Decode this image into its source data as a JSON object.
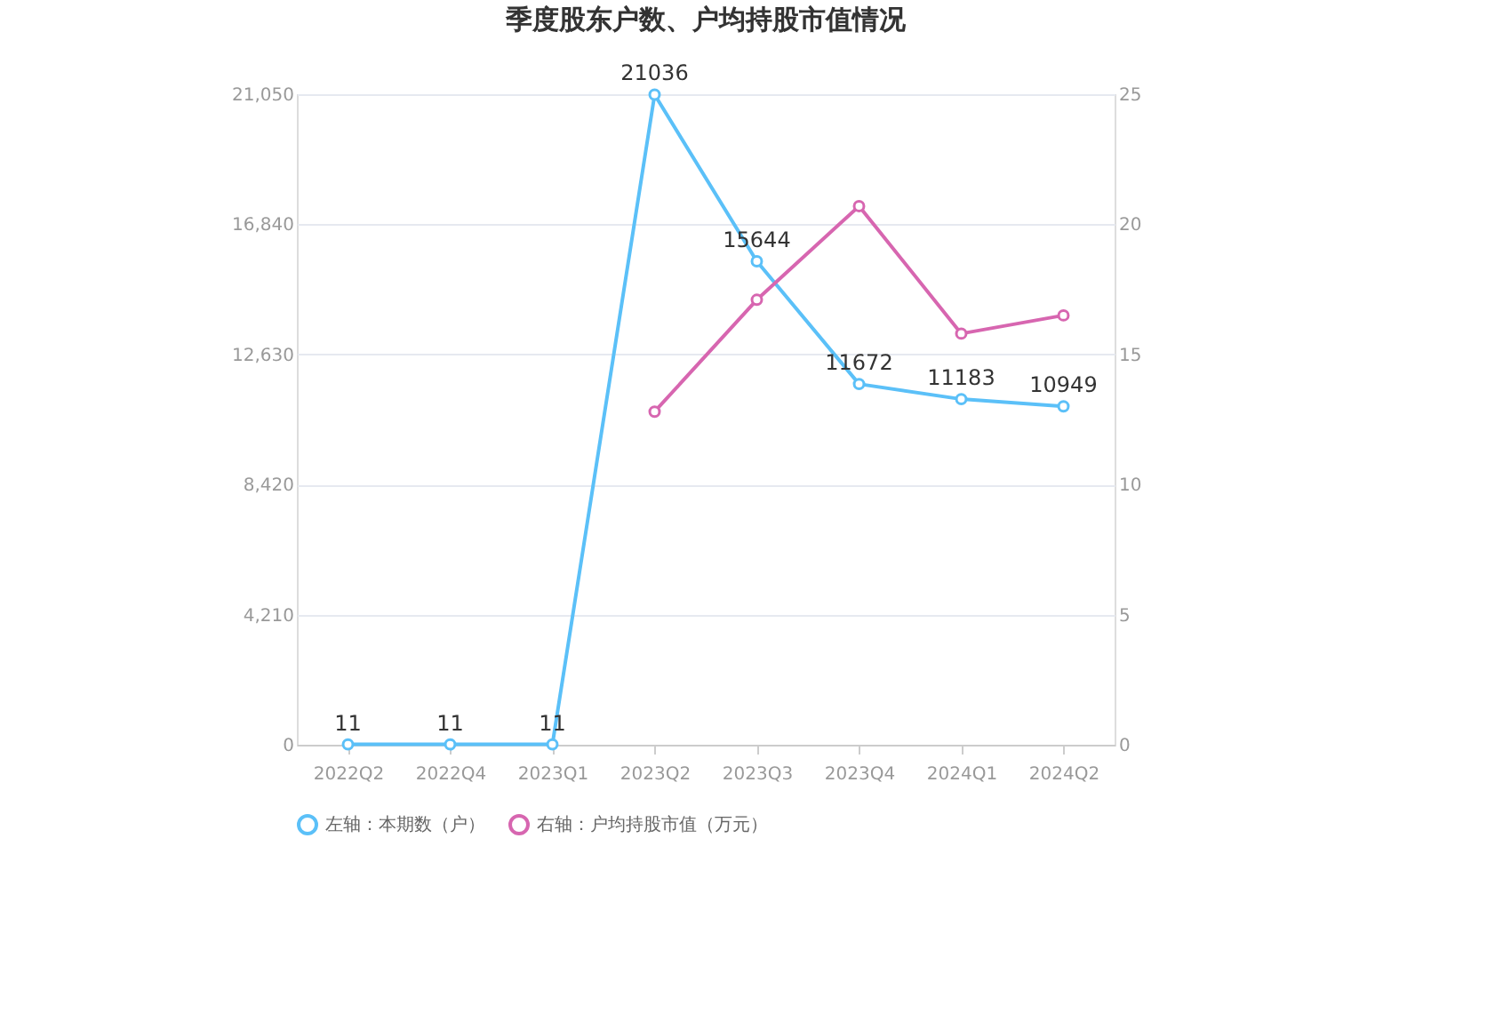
{
  "chart_data": {
    "type": "line",
    "title": "季度股东户数、户均持股市值情况",
    "categories": [
      "2022Q2",
      "2022Q4",
      "2023Q1",
      "2023Q2",
      "2023Q3",
      "2023Q4",
      "2024Q1",
      "2024Q2"
    ],
    "series": [
      {
        "name": "左轴：本期数（户）",
        "color": "#5bc0f8",
        "values": [
          11,
          11,
          11,
          21036,
          15644,
          11672,
          11183,
          10949
        ],
        "value_labels": [
          "11",
          "11",
          "11",
          "21036",
          "15644",
          "11672",
          "11183",
          "10949"
        ]
      },
      {
        "name": "右轴：户均持股市值（万元）",
        "color": "#d766b0",
        "axis": "y2",
        "values": [
          null,
          null,
          null,
          12.8,
          17.1,
          20.7,
          15.8,
          16.5
        ]
      }
    ],
    "ylim": [
      0,
      21050
    ],
    "yticks": [
      0,
      {
        "value": 4210,
        "label": "4,210"
      },
      {
        "value": 8420,
        "label": "8,420"
      },
      {
        "value": 12630,
        "label": "12,630"
      },
      {
        "value": 16840,
        "label": "16,840"
      },
      {
        "value": 21050,
        "label": "21,050"
      }
    ],
    "y2lim": [
      0,
      25
    ],
    "y2ticks": [
      0,
      5,
      10,
      15,
      20,
      25
    ],
    "grid": "y",
    "legend": "bottom",
    "marker": "circle",
    "line_style": "solid"
  }
}
